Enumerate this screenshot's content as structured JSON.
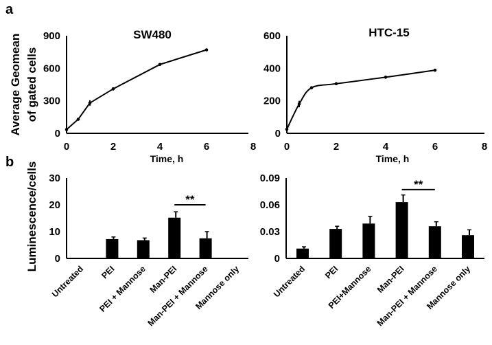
{
  "panels": {
    "a": "a",
    "b": "b"
  },
  "shared": {
    "ylabel_a_line1": "Average Geomean",
    "ylabel_a_line2": "of gated cells",
    "ylabel_b": "Luminescence/cells"
  },
  "chart_data": [
    {
      "type": "line",
      "panel": "a",
      "title": "SW480",
      "xlabel": "Time, h",
      "ylabel": "Average Geomean of gated cells",
      "xlim": [
        0,
        8
      ],
      "ylim": [
        0,
        900
      ],
      "xticks": [
        "0",
        "2",
        "4",
        "6",
        "8"
      ],
      "yticks": [
        "0",
        "300",
        "600",
        "900"
      ],
      "x": [
        0,
        0.5,
        1,
        2,
        4,
        6
      ],
      "series": [
        {
          "name": "SW480",
          "values": [
            35,
            130,
            280,
            410,
            635,
            770
          ],
          "errors": [
            5,
            10,
            25,
            15,
            8,
            10
          ]
        }
      ],
      "smooth": false
    },
    {
      "type": "line",
      "panel": "a",
      "title": "HTC-15",
      "xlabel": "Time, h",
      "ylabel": "",
      "xlim": [
        0,
        8
      ],
      "ylim": [
        0,
        600
      ],
      "xticks": [
        "0",
        "2",
        "4",
        "6",
        "8"
      ],
      "yticks": [
        "0",
        "200",
        "400",
        "600"
      ],
      "x": [
        0,
        0.5,
        1,
        2,
        4,
        6
      ],
      "series": [
        {
          "name": "HTC-15",
          "values": [
            25,
            180,
            280,
            305,
            345,
            388
          ],
          "errors": [
            5,
            20,
            5,
            4,
            3,
            5
          ]
        }
      ],
      "smooth": true
    },
    {
      "type": "bar",
      "panel": "b",
      "title": "",
      "ylabel": "Luminescence/cells",
      "ylim": [
        0,
        30
      ],
      "yticks": [
        "0",
        "10",
        "20",
        "30"
      ],
      "categories": [
        "Untreated",
        "PEI",
        "PEI + Mannose",
        "Man-PEI",
        "Man-PEI + Mannose",
        "Mannose only"
      ],
      "values": [
        0,
        7.2,
        6.8,
        15.2,
        7.5,
        0
      ],
      "errors": [
        0,
        0.8,
        0.8,
        2.2,
        2.5,
        0
      ],
      "significance": {
        "from": 3,
        "to": 4,
        "label": "**",
        "level": 20
      }
    },
    {
      "type": "bar",
      "panel": "b",
      "title": "",
      "ylabel": "",
      "ylim": [
        0,
        0.09
      ],
      "yticks": [
        "0",
        "0.03",
        "0.06",
        "0.09"
      ],
      "categories": [
        "Untreated",
        "PEI",
        "PEI+Mannose",
        "Man-PEI",
        "Man-PEI + Mannose",
        "Mannose only"
      ],
      "values": [
        0.011,
        0.033,
        0.039,
        0.063,
        0.036,
        0.026
      ],
      "errors": [
        0.002,
        0.003,
        0.008,
        0.008,
        0.005,
        0.006
      ],
      "significance": {
        "from": 3,
        "to": 4,
        "label": "**",
        "level": 0.077
      }
    }
  ]
}
